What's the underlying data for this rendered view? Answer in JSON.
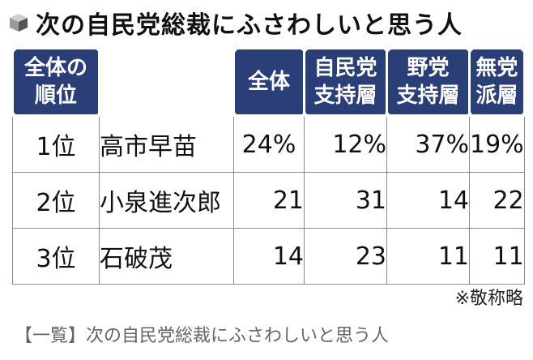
{
  "title": "次の自民党総裁にふさわしいと思う人",
  "table": {
    "rank_header": "全体の\n順位",
    "columns": [
      "全体",
      "自民党\n支持層",
      "野党\n支持層",
      "無党\n派層"
    ],
    "rows": [
      {
        "rank": "1位",
        "name": "高市早苗",
        "values": [
          "24%",
          "12%",
          "37%",
          "19%"
        ]
      },
      {
        "rank": "2位",
        "name": "小泉進次郎",
        "values": [
          "21",
          "31",
          "14",
          "22"
        ]
      },
      {
        "rank": "3位",
        "name": "石破茂",
        "values": [
          "14",
          "23",
          "11",
          "11"
        ]
      }
    ]
  },
  "note": "※敬称略",
  "caption": "【一覧】次の自民党総裁にふさわしいと思う人",
  "colors": {
    "header_bg": "#2a3f78",
    "caption_text": "#666666"
  }
}
